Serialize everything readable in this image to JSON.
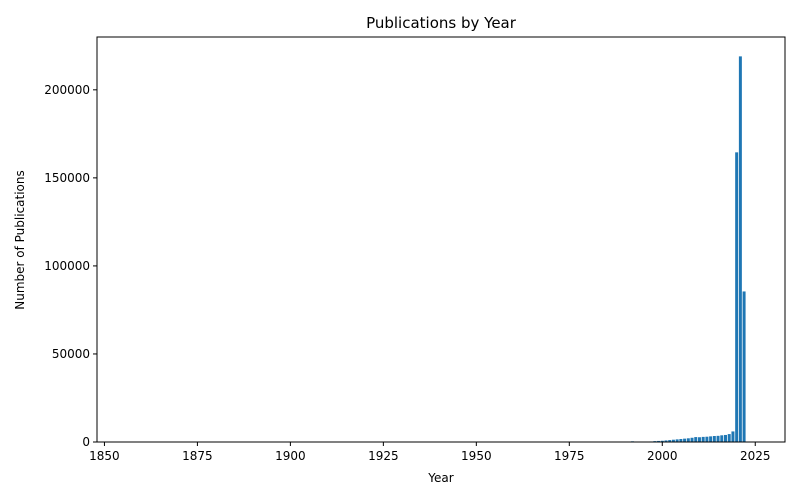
{
  "chart_data": {
    "type": "bar",
    "title": "Publications by Year",
    "xlabel": "Year",
    "ylabel": "Number of Publications",
    "xlim": [
      1848,
      2033
    ],
    "ylim": [
      0,
      230000
    ],
    "xticks": [
      1850,
      1875,
      1900,
      1925,
      1950,
      1975,
      2000,
      2025
    ],
    "yticks": [
      0,
      50000,
      100000,
      150000,
      200000
    ],
    "grid": false,
    "bar_color": "#1f77b4",
    "x": [
      1992,
      1997,
      1998,
      1999,
      2000,
      2001,
      2002,
      2003,
      2004,
      2005,
      2006,
      2007,
      2008,
      2009,
      2010,
      2011,
      2012,
      2013,
      2014,
      2015,
      2016,
      2017,
      2018,
      2019,
      2020,
      2021,
      2022
    ],
    "values": [
      400,
      300,
      500,
      600,
      700,
      900,
      1100,
      1300,
      1500,
      1700,
      1900,
      2100,
      2400,
      2800,
      2700,
      2900,
      3000,
      3200,
      3400,
      3500,
      3800,
      4000,
      4500,
      6000,
      164500,
      219000,
      85500
    ]
  }
}
